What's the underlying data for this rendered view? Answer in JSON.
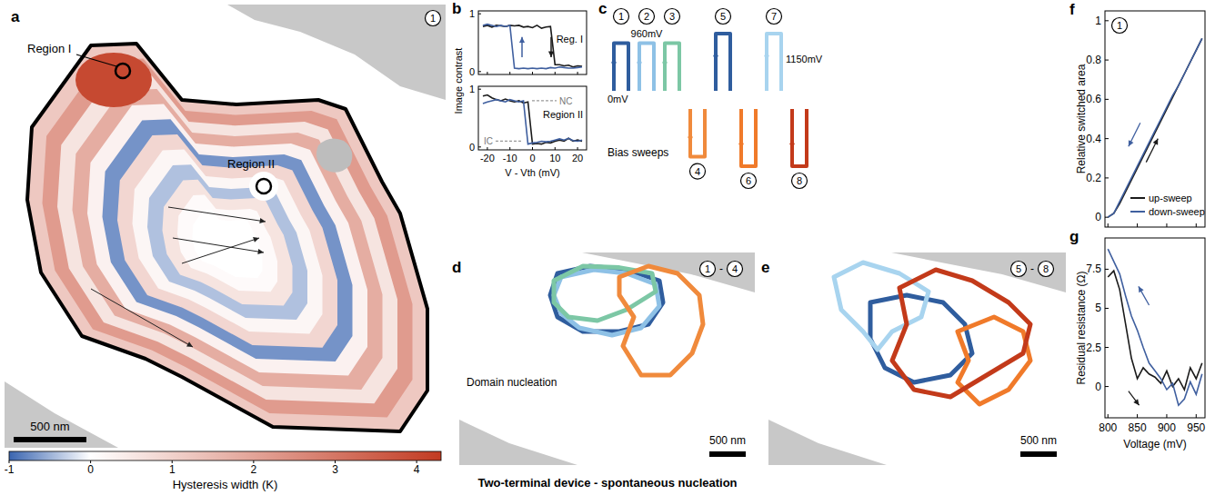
{
  "chart_data": [
    {
      "panel": "a",
      "type": "heatmap",
      "badge": "1",
      "bands": [
        1.2,
        2.2,
        0.6,
        1.8,
        0.3,
        -0.7,
        0.9,
        0.2,
        -0.4,
        0.6,
        0.1,
        0.0
      ],
      "regions": [
        {
          "label": "Region I",
          "value": 4.0
        },
        {
          "label": "Region II",
          "value": 0.0
        }
      ],
      "scale_bar": {
        "value": 500,
        "label": "500 nm"
      },
      "colorbar": {
        "label": "Hysteresis width (K)",
        "range": [
          -1,
          4.3
        ],
        "center": 0,
        "ticks": [
          -1,
          0,
          1,
          2,
          3,
          4
        ],
        "colors": [
          "#3a65b0",
          "#ffffff",
          "#c23b22"
        ]
      }
    },
    {
      "panel": "b",
      "type": "line",
      "x": [
        -22,
        -20,
        -18,
        -16,
        -14,
        -12,
        -10,
        -8,
        -6,
        -4,
        -2,
        0,
        2,
        4,
        6,
        8,
        10,
        12,
        14,
        16,
        18,
        20,
        22
      ],
      "xlim": [
        -24,
        24
      ],
      "xticks": [
        -20,
        -10,
        0,
        10,
        20
      ],
      "xlabel": "V - Vth (mV)",
      "ylabel": "Image contrast",
      "ylim": [
        -0.05,
        1.05
      ],
      "yticks": [
        0,
        1
      ],
      "subplots": [
        {
          "label": "Reg. I",
          "series": [
            {
              "color": "#1a1a1a",
              "values": [
                0.78,
                0.8,
                0.77,
                0.8,
                0.79,
                0.78,
                0.8,
                0.79,
                0.8,
                0.77,
                0.78,
                0.76,
                0.8,
                0.75,
                0.77,
                0.78,
                0.12,
                0.12,
                0.1,
                0.11,
                0.08,
                0.1,
                0.09
              ]
            },
            {
              "color": "#3f5f9f",
              "values": [
                0.8,
                0.82,
                0.8,
                0.78,
                0.8,
                0.78,
                0.8,
                0.06,
                0.05,
                0.06,
                0.05,
                0.06,
                0.05,
                0.06,
                0.05,
                0.07,
                0.06,
                0.08,
                0.07,
                0.06,
                0.06,
                0.07,
                0.08
              ]
            }
          ]
        },
        {
          "label": "Region II",
          "series": [
            {
              "color": "#1a1a1a",
              "values": [
                0.88,
                0.9,
                0.85,
                0.82,
                0.8,
                0.83,
                0.8,
                0.78,
                0.8,
                0.76,
                0.78,
                0.05,
                0.06,
                0.05,
                0.08,
                0.07,
                0.1,
                0.12,
                0.1,
                0.15,
                0.1,
                0.12,
                0.1
              ]
            },
            {
              "color": "#3f5f9f",
              "values": [
                0.75,
                0.78,
                0.8,
                0.82,
                0.8,
                0.78,
                0.82,
                0.8,
                0.78,
                0.8,
                0.05,
                0.07,
                0.08,
                0.1,
                0.09,
                0.1,
                0.12,
                0.14,
                0.12,
                0.15,
                0.11,
                0.1,
                0.12
              ]
            }
          ],
          "ref_lines": [
            {
              "label": "NC",
              "value": 0.8
            },
            {
              "label": "IC",
              "value": 0.1
            }
          ]
        }
      ]
    },
    {
      "panel": "c",
      "type": "schematic",
      "title": "Bias sweeps",
      "levels": [
        {
          "value": 0,
          "label": "0mV"
        },
        {
          "value": 960,
          "label": "960mV"
        },
        {
          "value": 1150,
          "label": "1150mV"
        }
      ],
      "sweeps": [
        {
          "label": "1",
          "direction": "up",
          "max": 960,
          "color": "#2f5d9e"
        },
        {
          "label": "2",
          "direction": "up",
          "max": 960,
          "color": "#8ec1e6"
        },
        {
          "label": "3",
          "direction": "up",
          "max": 960,
          "color": "#7cc7a5"
        },
        {
          "label": "4",
          "direction": "down",
          "max": 960,
          "color": "#f08a3c"
        },
        {
          "label": "5",
          "direction": "up",
          "max": 1150,
          "color": "#2f5d9e"
        },
        {
          "label": "6",
          "direction": "down",
          "max": 1150,
          "color": "#f07a2a"
        },
        {
          "label": "7",
          "direction": "up",
          "max": 1150,
          "color": "#a8d4ef"
        },
        {
          "label": "8",
          "direction": "down",
          "max": 1150,
          "color": "#c33a1a"
        }
      ]
    },
    {
      "panel": "d",
      "type": "outline",
      "badges": [
        "1",
        "4"
      ],
      "badge_joiner": "-",
      "annotation": "Domain nucleation",
      "scale_bar": {
        "value": 500,
        "label": "500 nm"
      },
      "outlines": [
        {
          "color": "#2f5d9e",
          "points": [
            [
              1.35,
              0.2
            ],
            [
              1.8,
              0.1
            ],
            [
              2.3,
              0.15
            ],
            [
              2.75,
              0.3
            ],
            [
              2.8,
              0.6
            ],
            [
              2.6,
              0.9
            ],
            [
              2.2,
              1.0
            ],
            [
              1.7,
              1.0
            ],
            [
              1.35,
              0.8
            ],
            [
              1.25,
              0.5
            ]
          ]
        },
        {
          "color": "#8ec1e6",
          "points": [
            [
              1.4,
              0.25
            ],
            [
              1.85,
              0.15
            ],
            [
              2.3,
              0.2
            ],
            [
              2.7,
              0.35
            ],
            [
              2.75,
              0.65
            ],
            [
              2.5,
              0.95
            ],
            [
              2.1,
              1.05
            ],
            [
              1.65,
              0.95
            ],
            [
              1.4,
              0.75
            ],
            [
              1.3,
              0.5
            ]
          ]
        },
        {
          "color": "#7cc7a5",
          "points": [
            [
              1.3,
              0.3
            ],
            [
              1.7,
              0.1
            ],
            [
              2.2,
              0.12
            ],
            [
              2.65,
              0.2
            ],
            [
              2.7,
              0.45
            ],
            [
              2.3,
              0.7
            ],
            [
              1.9,
              0.85
            ],
            [
              1.5,
              0.8
            ],
            [
              1.3,
              0.6
            ]
          ]
        },
        {
          "color": "#f08a3c",
          "points": [
            [
              2.2,
              0.25
            ],
            [
              2.6,
              0.1
            ],
            [
              3.0,
              0.2
            ],
            [
              3.3,
              0.5
            ],
            [
              3.35,
              0.9
            ],
            [
              3.2,
              1.3
            ],
            [
              2.9,
              1.6
            ],
            [
              2.5,
              1.6
            ],
            [
              2.25,
              1.2
            ],
            [
              2.4,
              0.8
            ],
            [
              2.2,
              0.5
            ]
          ]
        }
      ]
    },
    {
      "panel": "e",
      "type": "outline",
      "badges": [
        "5",
        "8"
      ],
      "badge_joiner": "-",
      "scale_bar": {
        "value": 500,
        "label": "500 nm"
      },
      "outlines": [
        {
          "color": "#2f5d9e",
          "points": [
            [
              1.4,
              0.6
            ],
            [
              1.9,
              0.5
            ],
            [
              2.4,
              0.6
            ],
            [
              2.7,
              0.9
            ],
            [
              2.8,
              1.3
            ],
            [
              2.5,
              1.6
            ],
            [
              2.0,
              1.7
            ],
            [
              1.6,
              1.5
            ],
            [
              1.4,
              1.1
            ]
          ]
        },
        {
          "color": "#f07a2a",
          "points": [
            [
              2.6,
              1.0
            ],
            [
              3.1,
              0.8
            ],
            [
              3.5,
              1.0
            ],
            [
              3.6,
              1.4
            ],
            [
              3.3,
              1.8
            ],
            [
              2.9,
              2.0
            ],
            [
              2.6,
              1.7
            ],
            [
              2.75,
              1.4
            ]
          ]
        },
        {
          "color": "#a8d4ef",
          "points": [
            [
              0.9,
              0.25
            ],
            [
              1.3,
              0.05
            ],
            [
              1.8,
              0.2
            ],
            [
              2.2,
              0.45
            ],
            [
              2.1,
              0.8
            ],
            [
              1.7,
              1.0
            ],
            [
              1.5,
              1.25
            ],
            [
              1.3,
              1.0
            ],
            [
              1.0,
              0.7
            ]
          ]
        },
        {
          "color": "#c33a1a",
          "points": [
            [
              1.8,
              0.4
            ],
            [
              2.3,
              0.15
            ],
            [
              2.8,
              0.3
            ],
            [
              3.3,
              0.6
            ],
            [
              3.6,
              0.9
            ],
            [
              3.5,
              1.3
            ],
            [
              3.0,
              1.6
            ],
            [
              2.5,
              1.9
            ],
            [
              2.0,
              1.8
            ],
            [
              1.7,
              1.4
            ],
            [
              1.9,
              0.9
            ]
          ]
        }
      ]
    },
    {
      "panel": "f",
      "type": "line",
      "badge": "1",
      "x": [
        800,
        810,
        820,
        830,
        840,
        850,
        860,
        870,
        880,
        890,
        900,
        910,
        920,
        930,
        940,
        950,
        960
      ],
      "xlim": [
        795,
        965
      ],
      "xticks": [
        800,
        850,
        900,
        950
      ],
      "tick_labels": "y",
      "ylim": [
        -0.05,
        1.05
      ],
      "yticks": [
        0,
        0.2,
        0.4,
        0.6,
        0.8,
        1
      ],
      "ylabel": "Relative switched area",
      "legend": "lower right",
      "series": [
        {
          "name": "up-sweep",
          "color": "#1a1a1a",
          "values": [
            0,
            0.02,
            0.07,
            0.13,
            0.19,
            0.25,
            0.31,
            0.37,
            0.43,
            0.49,
            0.55,
            0.61,
            0.67,
            0.73,
            0.79,
            0.85,
            0.91
          ]
        },
        {
          "name": "down-sweep",
          "color": "#3f5f9f",
          "values": [
            0,
            0.02,
            0.08,
            0.14,
            0.2,
            0.26,
            0.32,
            0.38,
            0.44,
            0.5,
            0.56,
            0.62,
            0.67,
            0.73,
            0.79,
            0.85,
            0.91
          ]
        }
      ]
    },
    {
      "panel": "g",
      "type": "line",
      "x": [
        800,
        810,
        820,
        830,
        840,
        850,
        860,
        870,
        880,
        890,
        900,
        910,
        920,
        930,
        940,
        950,
        960
      ],
      "xlim": [
        795,
        965
      ],
      "xticks": [
        800,
        850,
        900,
        950
      ],
      "xlabel": "Voltage (mV)",
      "ylim": [
        -2,
        9.5
      ],
      "yticks": [
        0,
        2.5,
        5,
        7.5
      ],
      "ylabel": "Residual resistance (Ω)",
      "series": [
        {
          "color": "#1a1a1a",
          "values": [
            7.0,
            7.4,
            6.2,
            4.0,
            1.8,
            0.5,
            1.2,
            0.8,
            0.6,
            0.2,
            1.0,
            0.0,
            0.5,
            -0.2,
            1.2,
            0.5,
            1.5
          ]
        },
        {
          "color": "#3f5f9f",
          "values": [
            8.8,
            8.0,
            7.2,
            5.8,
            4.5,
            3.6,
            2.5,
            1.5,
            1.0,
            0.5,
            -0.2,
            0.2,
            -1.2,
            -0.8,
            0.3,
            -0.5,
            0.8
          ]
        }
      ]
    }
  ],
  "caption": "Two-terminal device - spontaneous nucleation"
}
